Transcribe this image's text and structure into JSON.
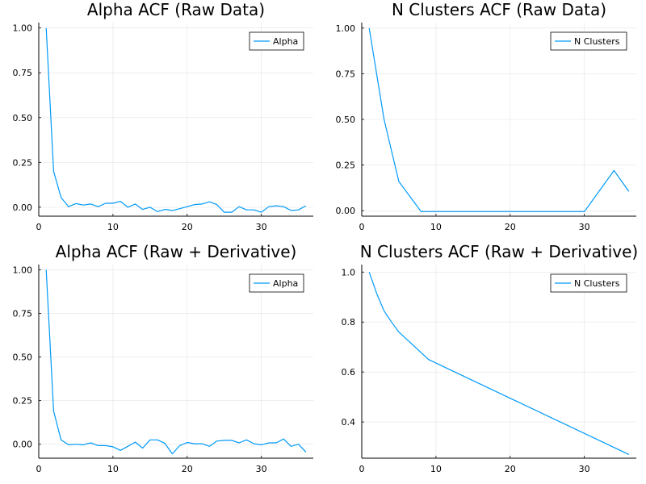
{
  "chart_data": [
    {
      "type": "line",
      "title": "Alpha ACF (Raw Data)",
      "xlabel": "",
      "ylabel": "",
      "xlim": [
        0,
        37
      ],
      "ylim": [
        -0.05,
        1.03
      ],
      "xticks": [
        0,
        10,
        20,
        30
      ],
      "yticks": [
        0.0,
        0.25,
        0.5,
        0.75,
        1.0
      ],
      "ytick_labels": [
        "0.00",
        "0.25",
        "0.50",
        "0.75",
        "1.00"
      ],
      "grid": true,
      "legend": "top-right",
      "series": [
        {
          "name": "Alpha",
          "color": "#009AFA",
          "x": [
            1,
            2,
            3,
            4,
            5,
            6,
            7,
            8,
            9,
            10,
            11,
            12,
            13,
            14,
            15,
            16,
            17,
            18,
            19,
            20,
            21,
            22,
            23,
            24,
            25,
            26,
            27,
            28,
            29,
            30,
            31,
            32,
            33,
            34,
            35,
            36
          ],
          "y": [
            1.0,
            0.2,
            0.055,
            0.003,
            0.02,
            0.012,
            0.018,
            0.003,
            0.022,
            0.022,
            0.033,
            0.0,
            0.018,
            -0.012,
            0.0,
            -0.025,
            -0.012,
            -0.018,
            -0.008,
            0.003,
            0.015,
            0.018,
            0.03,
            0.015,
            -0.028,
            -0.028,
            0.003,
            -0.015,
            -0.015,
            -0.028,
            0.003,
            0.008,
            0.003,
            -0.018,
            -0.015,
            0.008
          ]
        }
      ]
    },
    {
      "type": "line",
      "title": "N Clusters ACF (Raw Data)",
      "xlabel": "",
      "ylabel": "",
      "xlim": [
        0,
        37
      ],
      "ylim": [
        -0.03,
        1.03
      ],
      "xticks": [
        0,
        10,
        20,
        30
      ],
      "yticks": [
        0.0,
        0.25,
        0.5,
        0.75,
        1.0
      ],
      "ytick_labels": [
        "0.00",
        "0.25",
        "0.50",
        "0.75",
        "1.00"
      ],
      "grid": true,
      "legend": "top-right",
      "series": [
        {
          "name": "N Clusters",
          "color": "#009AFA",
          "x": [
            1,
            3,
            5,
            8,
            30,
            34,
            36
          ],
          "y": [
            1.0,
            0.5,
            0.16,
            -0.005,
            -0.005,
            0.22,
            0.105
          ]
        }
      ]
    },
    {
      "type": "line",
      "title": "Alpha ACF (Raw + Derivative)",
      "xlabel": "",
      "ylabel": "",
      "xlim": [
        0,
        37
      ],
      "ylim": [
        -0.08,
        1.03
      ],
      "xticks": [
        0,
        10,
        20,
        30
      ],
      "yticks": [
        0.0,
        0.25,
        0.5,
        0.75,
        1.0
      ],
      "ytick_labels": [
        "0.00",
        "0.25",
        "0.50",
        "0.75",
        "1.00"
      ],
      "grid": true,
      "legend": "top-right",
      "series": [
        {
          "name": "Alpha",
          "color": "#009AFA",
          "x": [
            1,
            2,
            3,
            4,
            5,
            6,
            7,
            8,
            9,
            10,
            11,
            12,
            13,
            14,
            15,
            16,
            17,
            18,
            19,
            20,
            21,
            22,
            23,
            24,
            25,
            26,
            27,
            28,
            29,
            30,
            31,
            32,
            33,
            34,
            35,
            36
          ],
          "y": [
            1.0,
            0.19,
            0.025,
            -0.003,
            0.0,
            -0.003,
            0.008,
            -0.008,
            -0.008,
            -0.015,
            -0.035,
            -0.012,
            0.012,
            -0.022,
            0.025,
            0.025,
            0.005,
            -0.055,
            -0.008,
            0.01,
            0.003,
            0.003,
            -0.012,
            0.018,
            0.022,
            0.022,
            0.008,
            0.025,
            0.003,
            -0.003,
            0.008,
            0.008,
            0.03,
            -0.012,
            0.0,
            -0.045
          ]
        }
      ]
    },
    {
      "type": "line",
      "title": "N Clusters ACF (Raw + Derivative)",
      "xlabel": "",
      "ylabel": "",
      "xlim": [
        0,
        37
      ],
      "ylim": [
        0.255,
        1.03
      ],
      "xticks": [
        0,
        10,
        20,
        30
      ],
      "yticks": [
        0.4,
        0.6,
        0.8,
        1.0
      ],
      "ytick_labels": [
        "0.4",
        "0.6",
        "0.8",
        "1.0"
      ],
      "grid": true,
      "legend": "top-right",
      "series": [
        {
          "name": "N Clusters",
          "color": "#009AFA",
          "x": [
            1,
            2,
            3,
            4,
            5,
            7,
            9,
            36
          ],
          "y": [
            1.0,
            0.915,
            0.845,
            0.8,
            0.76,
            0.705,
            0.65,
            0.27
          ]
        }
      ]
    }
  ]
}
